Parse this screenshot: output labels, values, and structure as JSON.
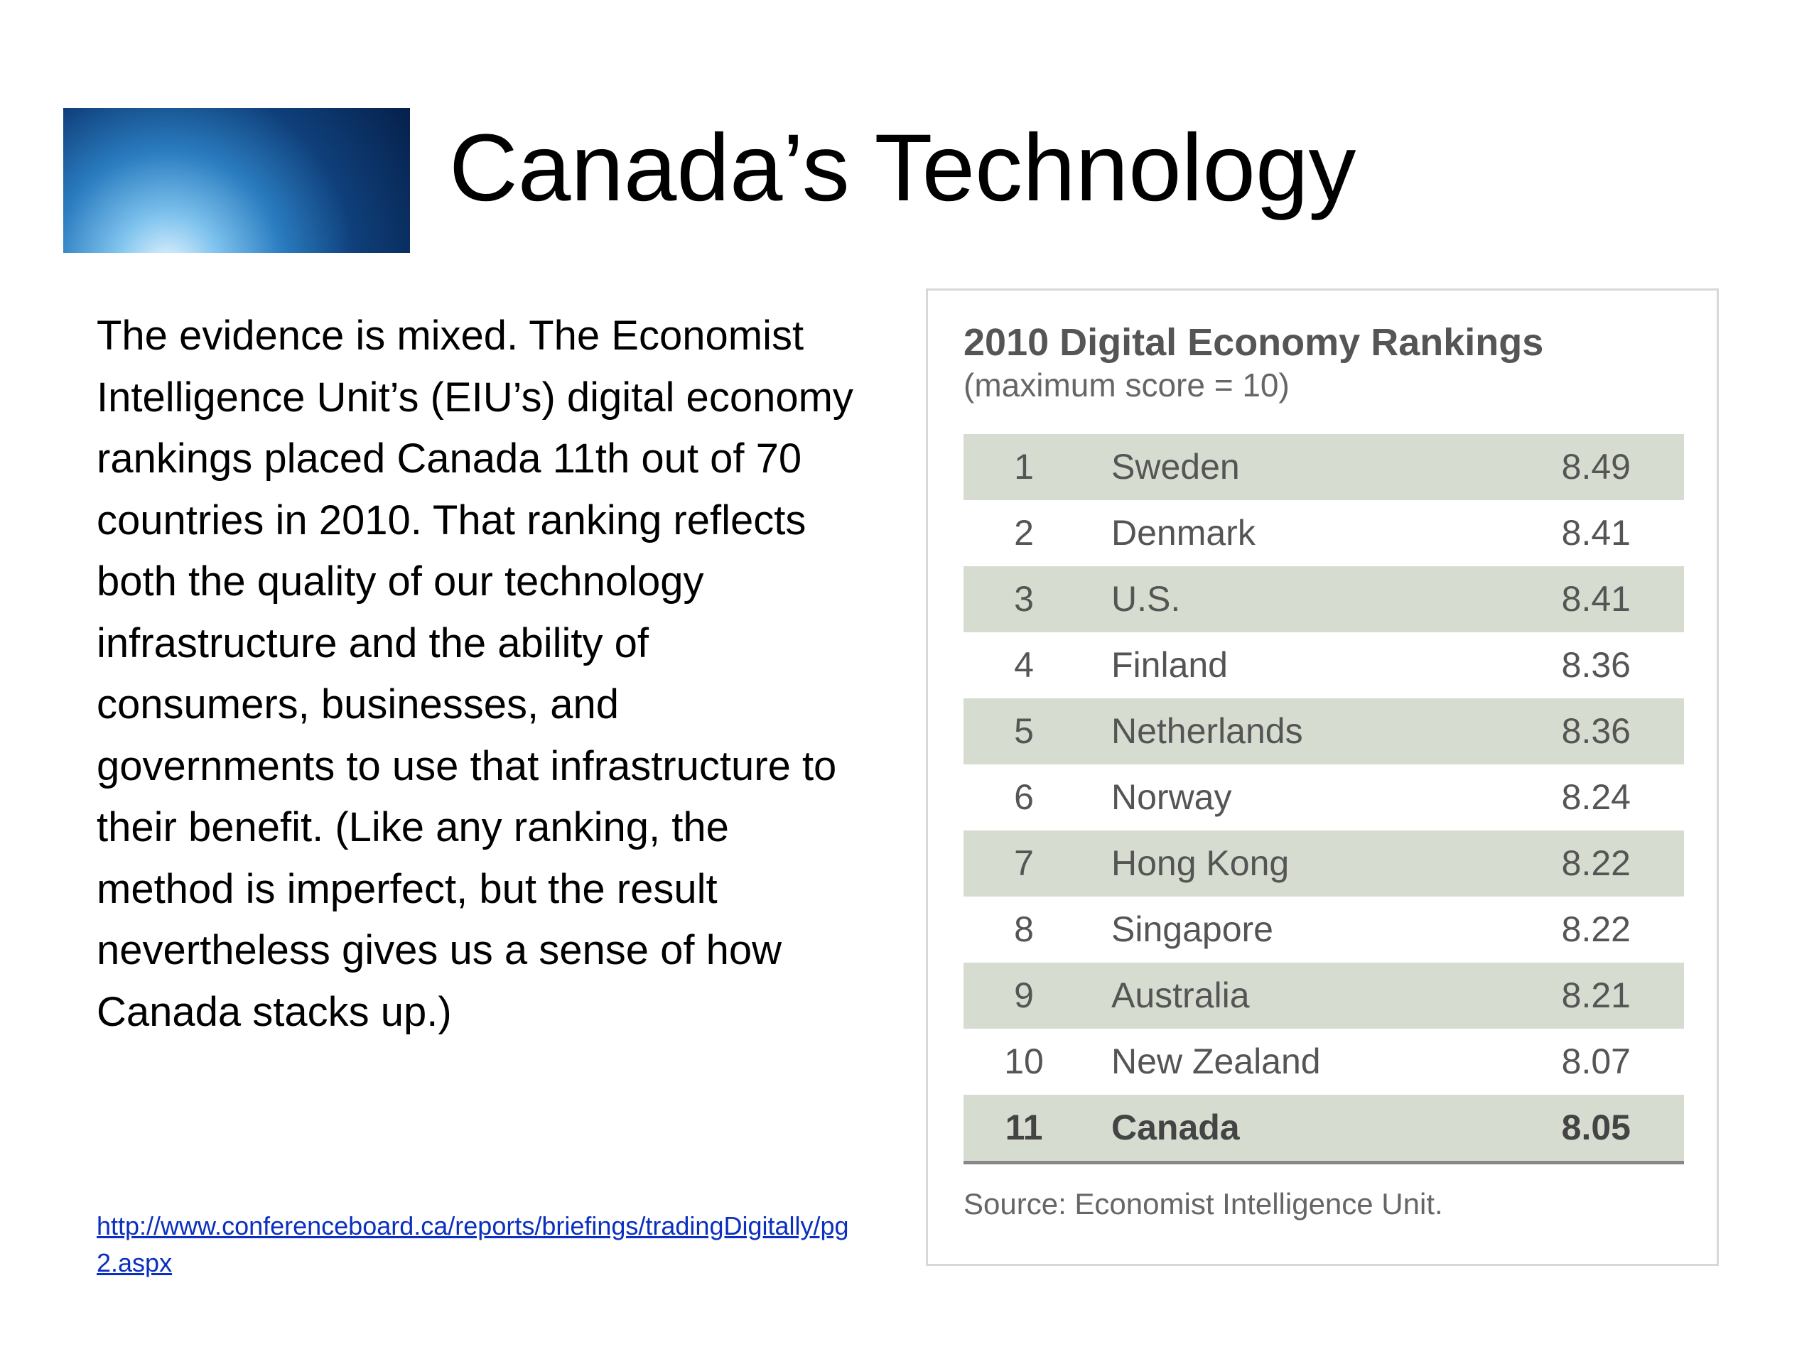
{
  "header": {
    "title": "Canada’s Technology"
  },
  "body": {
    "paragraph": "The evidence is mixed. The Economist Intelligence Unit’s (EIU’s) digital economy rankings placed Canada 11th out of 70 countries in 2010.  That ranking reflects both the quality of our technology infrastructure and the ability of consumers, businesses, and governments to use that infrastructure to their benefit. (Like any ranking, the method is imperfect, but the result nevertheless gives us a sense of how Canada stacks up.)",
    "link": "http://www.conferenceboard.ca/reports/briefings/tradingDigitally/pg2.aspx"
  },
  "table": {
    "title": "2010 Digital Economy Rankings",
    "subtitle": "(maximum score = 10)",
    "rows": [
      [
        "1",
        "Sweden",
        "8.49"
      ],
      [
        "2",
        "Denmark",
        "8.41"
      ],
      [
        "3",
        "U.S.",
        "8.41"
      ],
      [
        "4",
        "Finland",
        "8.36"
      ],
      [
        "5",
        "Netherlands",
        "8.36"
      ],
      [
        "6",
        "Norway",
        "8.24"
      ],
      [
        "7",
        "Hong Kong",
        "8.22"
      ],
      [
        "8",
        "Singapore",
        "8.22"
      ],
      [
        "9",
        "Australia",
        "8.21"
      ],
      [
        "10",
        "New Zealand",
        "8.07"
      ],
      [
        "11",
        "Canada",
        "8.05"
      ]
    ],
    "source": "Source: Economist Intelligence Unit."
  }
}
